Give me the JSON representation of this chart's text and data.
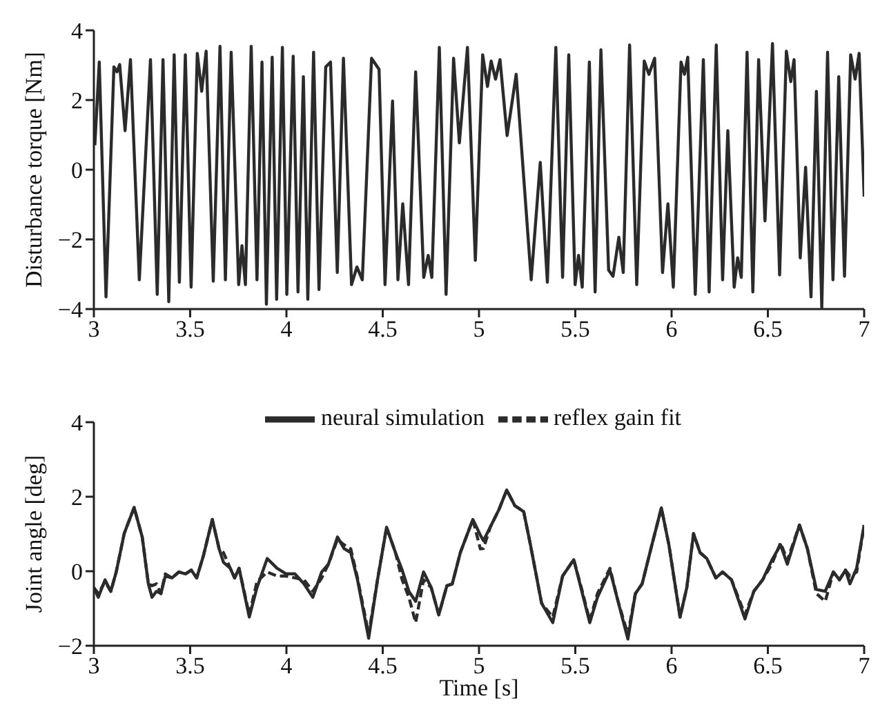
{
  "chart_data": [
    {
      "type": "line",
      "ylabel": "Disturbance torque [Nm]",
      "xlim": [
        3,
        7
      ],
      "xticks": [
        3,
        3.5,
        4,
        4.5,
        5,
        5.5,
        6,
        6.5,
        7
      ],
      "ylim": [
        -4,
        4
      ],
      "yticks": [
        -4,
        -2,
        0,
        2,
        4
      ],
      "grid": false,
      "legend": false,
      "x": [
        3.005,
        3.028,
        3.063,
        3.104,
        3.12,
        3.134,
        3.162,
        3.19,
        3.236,
        3.294,
        3.329,
        3.359,
        3.389,
        3.417,
        3.444,
        3.475,
        3.505,
        3.537,
        3.56,
        3.583,
        3.62,
        3.655,
        3.683,
        3.713,
        3.752,
        3.769,
        3.787,
        3.817,
        3.847,
        3.873,
        3.896,
        3.926,
        3.949,
        3.979,
        4.002,
        4.035,
        4.06,
        4.088,
        4.111,
        4.141,
        4.169,
        4.204,
        4.229,
        4.264,
        4.296,
        4.338,
        4.366,
        4.394,
        4.442,
        4.481,
        4.512,
        4.551,
        4.579,
        4.604,
        4.634,
        4.671,
        4.713,
        4.736,
        4.755,
        4.794,
        4.829,
        4.868,
        4.898,
        4.94,
        4.981,
        5.019,
        5.044,
        5.063,
        5.086,
        5.109,
        5.146,
        5.193,
        5.271,
        5.318,
        5.355,
        5.399,
        5.434,
        5.466,
        5.499,
        5.517,
        5.536,
        5.573,
        5.603,
        5.633,
        5.673,
        5.696,
        5.726,
        5.749,
        5.782,
        5.819,
        5.858,
        5.882,
        5.912,
        5.953,
        5.981,
        6.009,
        6.049,
        6.067,
        6.084,
        6.123,
        6.165,
        6.195,
        6.232,
        6.265,
        6.292,
        6.325,
        6.343,
        6.362,
        6.392,
        6.422,
        6.452,
        6.485,
        6.524,
        6.561,
        6.596,
        6.619,
        6.636,
        6.668,
        6.696,
        6.724,
        6.752,
        6.78,
        6.81,
        6.838,
        6.868,
        6.898,
        6.93,
        6.953,
        6.974,
        7.0
      ],
      "series": [
        {
          "color": "#2b2b2b",
          "values": [
            0.7,
            3.09,
            -3.65,
            2.95,
            2.81,
            3.02,
            1.12,
            3.16,
            -3.16,
            3.16,
            -3.58,
            3.16,
            -3.79,
            3.3,
            -3.23,
            3.3,
            -3.37,
            3.34,
            2.25,
            3.4,
            -3.2,
            3.54,
            -3.16,
            3.37,
            -3.3,
            -2.18,
            -3.3,
            3.54,
            -3.16,
            3.09,
            -3.86,
            3.23,
            -3.72,
            3.51,
            -3.58,
            3.26,
            -3.51,
            2.67,
            -3.72,
            3.37,
            -3.44,
            2.95,
            3.09,
            -2.95,
            3.2,
            -3.3,
            -2.79,
            -3.16,
            3.2,
            2.88,
            -3.3,
            1.97,
            -3.16,
            -0.98,
            -3.3,
            2.81,
            -3.09,
            -2.46,
            -3.09,
            3.51,
            -3.58,
            3.2,
            0.77,
            3.51,
            -2.6,
            3.3,
            2.39,
            3.12,
            2.6,
            3.16,
            0.98,
            2.74,
            -3.16,
            0.21,
            -3.23,
            3.51,
            -3.09,
            3.3,
            -3.3,
            -2.46,
            -3.37,
            3.09,
            -3.51,
            3.44,
            -2.88,
            -3.06,
            -1.94,
            -2.95,
            3.58,
            -3.3,
            3.12,
            2.74,
            3.2,
            -2.95,
            -0.98,
            -3.37,
            3.09,
            2.74,
            3.23,
            -3.58,
            3.16,
            -3.51,
            3.58,
            -3.16,
            1.12,
            -3.37,
            -2.53,
            -3.09,
            3.37,
            -3.51,
            3.16,
            -1.47,
            3.62,
            -3.02,
            3.4,
            2.53,
            3.16,
            -2.53,
            0.07,
            -3.65,
            2.25,
            -3.95,
            3.37,
            -3.16,
            2.67,
            -3.06,
            3.3,
            2.6,
            3.34,
            -0.77
          ]
        }
      ]
    },
    {
      "type": "line",
      "xlabel": "Time [s]",
      "ylabel": "Joint angle [deg]",
      "xlim": [
        3,
        7
      ],
      "xticks": [
        3,
        3.5,
        4,
        4.5,
        5,
        5.5,
        6,
        6.5,
        7
      ],
      "ylim": [
        -2,
        4
      ],
      "yticks": [
        -2,
        0,
        2,
        4
      ],
      "grid": false,
      "legend": "top",
      "x": [
        3.0,
        3.023,
        3.058,
        3.088,
        3.116,
        3.158,
        3.209,
        3.251,
        3.283,
        3.302,
        3.325,
        3.348,
        3.371,
        3.406,
        3.441,
        3.476,
        3.506,
        3.534,
        3.568,
        3.615,
        3.65,
        3.673,
        3.708,
        3.731,
        3.754,
        3.807,
        3.847,
        3.9,
        3.951,
        3.998,
        4.044,
        4.091,
        4.137,
        4.183,
        4.218,
        4.265,
        4.299,
        4.334,
        4.369,
        4.427,
        4.473,
        4.52,
        4.566,
        4.601,
        4.636,
        4.671,
        4.712,
        4.752,
        4.791,
        4.833,
        4.861,
        4.903,
        4.968,
        5.007,
        5.023,
        5.058,
        5.104,
        5.144,
        5.186,
        5.232,
        5.267,
        5.325,
        5.383,
        5.434,
        5.492,
        5.534,
        5.575,
        5.615,
        5.68,
        5.719,
        5.773,
        5.812,
        5.847,
        5.893,
        5.947,
        5.986,
        6.044,
        6.079,
        6.114,
        6.148,
        6.183,
        6.23,
        6.265,
        6.311,
        6.381,
        6.427,
        6.473,
        6.52,
        6.566,
        6.601,
        6.664,
        6.705,
        6.752,
        6.798,
        6.84,
        6.872,
        6.903,
        6.926,
        6.961,
        7.0
      ],
      "series": [
        {
          "name": "neural simulation",
          "color": "#2b2b2b",
          "line_style": "solid",
          "values": [
            -0.44,
            -0.7,
            -0.23,
            -0.54,
            -0.02,
            1.02,
            1.71,
            0.92,
            -0.34,
            -0.7,
            -0.54,
            -0.6,
            -0.13,
            -0.18,
            -0.02,
            -0.07,
            0.03,
            -0.18,
            0.4,
            1.39,
            0.61,
            0.24,
            0.08,
            -0.18,
            0.08,
            -1.23,
            -0.44,
            0.34,
            0.08,
            -0.07,
            -0.07,
            -0.34,
            -0.7,
            -0.02,
            0.19,
            0.92,
            0.61,
            0.5,
            -0.23,
            -1.8,
            -0.23,
            1.18,
            0.5,
            0.03,
            -0.54,
            -0.81,
            -0.02,
            -0.44,
            -1.17,
            -0.39,
            -0.34,
            0.5,
            1.39,
            0.97,
            0.82,
            1.18,
            1.66,
            2.18,
            1.76,
            1.6,
            0.71,
            -0.86,
            -1.38,
            -0.13,
            0.31,
            -0.54,
            -1.38,
            -0.7,
            0.03,
            -0.75,
            -1.82,
            -0.6,
            -0.34,
            0.61,
            1.7,
            0.71,
            -1.23,
            -0.44,
            1.01,
            0.5,
            0.34,
            -0.18,
            -0.02,
            -0.23,
            -1.28,
            -0.54,
            -0.23,
            0.29,
            0.71,
            0.19,
            1.24,
            0.61,
            -0.49,
            -0.54,
            -0.02,
            -0.23,
            0.03,
            -0.34,
            0.08,
            1.24
          ]
        },
        {
          "name": "reflex gain fit",
          "color": "#2b2b2b",
          "line_style": "dashed",
          "values": [
            -0.44,
            -0.6,
            -0.28,
            -0.54,
            -0.02,
            1.02,
            1.71,
            0.92,
            -0.34,
            -0.39,
            -0.34,
            -0.6,
            -0.07,
            -0.18,
            -0.02,
            -0.07,
            0.03,
            -0.18,
            0.4,
            1.39,
            0.61,
            0.5,
            0.08,
            -0.18,
            0.08,
            -1.17,
            -0.28,
            -0.02,
            -0.13,
            -0.13,
            -0.18,
            -0.23,
            -0.54,
            -0.18,
            0.19,
            0.86,
            0.71,
            0.6,
            -0.18,
            -1.69,
            -0.23,
            1.18,
            0.5,
            -0.23,
            -0.7,
            -1.38,
            -0.23,
            -0.44,
            -1.17,
            -0.39,
            -0.34,
            0.5,
            1.39,
            0.6,
            0.61,
            1.18,
            1.66,
            2.18,
            1.76,
            1.6,
            0.71,
            -0.86,
            -1.23,
            -0.13,
            0.31,
            -0.49,
            -1.33,
            -0.6,
            0.08,
            -0.75,
            -1.7,
            -0.6,
            -0.34,
            0.61,
            1.7,
            0.71,
            -1.23,
            -0.44,
            1.01,
            0.5,
            0.34,
            -0.18,
            -0.02,
            -0.23,
            -1.17,
            -0.54,
            -0.23,
            0.19,
            0.76,
            0.29,
            1.24,
            0.61,
            -0.6,
            -0.81,
            -0.02,
            -0.23,
            0.03,
            -0.13,
            -0.02,
            1.24
          ]
        }
      ]
    }
  ]
}
